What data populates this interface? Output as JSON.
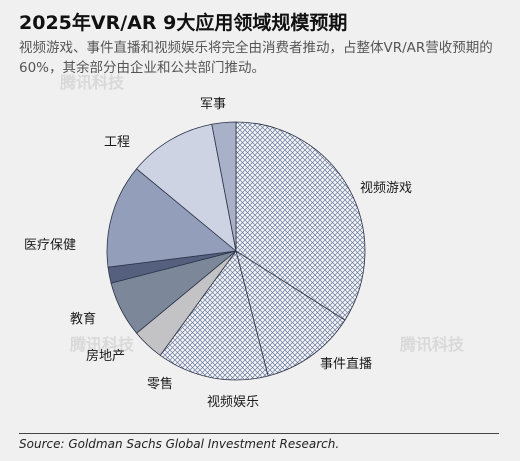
{
  "header": {
    "title": "2025年VR/AR 9大应用领域规模预期",
    "subtitle": "视频游戏、事件直播和视频娱乐将完全由消费者推动，占整体VR/AR营收预期的60%，其余部分由企业和公共部门推动。"
  },
  "watermark": "腾讯科技",
  "source": "Source: Goldman Sachs Global Investment Research.",
  "chart_data": {
    "type": "pie",
    "title": "2025年VR/AR 9大应用领域规模预期",
    "unit": "%",
    "slices": [
      {
        "label": "视频游戏",
        "value": 34,
        "fill": "pattern",
        "color": "#6b7a9a"
      },
      {
        "label": "事件直播",
        "value": 12,
        "fill": "pattern",
        "color": "#6b7a9a"
      },
      {
        "label": "视频娱乐",
        "value": 14,
        "fill": "pattern",
        "color": "#6b7a9a"
      },
      {
        "label": "零售",
        "value": 4,
        "fill": "solid",
        "color": "#c3c3c6"
      },
      {
        "label": "房地产",
        "value": 7,
        "fill": "solid",
        "color": "#7d879a"
      },
      {
        "label": "教育",
        "value": 2,
        "fill": "solid",
        "color": "#54607e"
      },
      {
        "label": "医疗保健",
        "value": 13,
        "fill": "solid",
        "color": "#939eba"
      },
      {
        "label": "工程",
        "value": 11,
        "fill": "solid",
        "color": "#cdd3e2"
      },
      {
        "label": "军事",
        "value": 3,
        "fill": "solid",
        "color": "#a9b1c8"
      }
    ]
  }
}
